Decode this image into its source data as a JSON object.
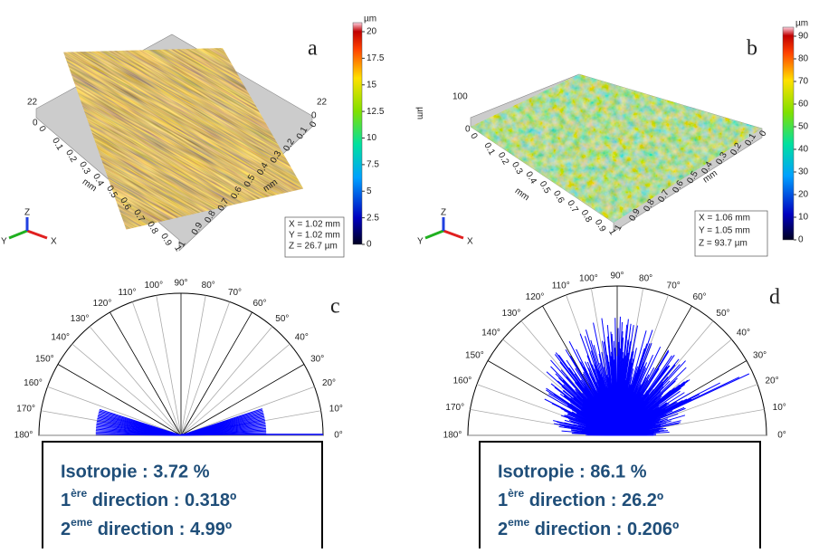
{
  "panels": [
    {
      "label": "a",
      "height_labels": [
        "22",
        "22",
        "0",
        "0"
      ],
      "axis_unit": "mm",
      "edge_ticks": [
        "0",
        "0.1",
        "0.2",
        "0.3",
        "0.4",
        "0.5",
        "0.6",
        "0.7",
        "0.8",
        "0.9",
        "1"
      ],
      "colorbar": {
        "unit": "µm",
        "ticks": [
          "0",
          "2.5",
          "5",
          "7.5",
          "10",
          "12.5",
          "15",
          "17.5",
          "20"
        ]
      },
      "readout": [
        "X = 1.02 mm",
        "Y = 1.02 mm",
        "Z = 26.7 µm"
      ],
      "axes": [
        "X",
        "Y",
        "Z"
      ]
    },
    {
      "label": "b",
      "height_labels": [
        "100",
        "µm",
        "0"
      ],
      "axis_unit": "mm",
      "edge_ticks": [
        "0",
        "0.1",
        "0.2",
        "0.3",
        "0.4",
        "0.5",
        "0.6",
        "0.7",
        "0.8",
        "0.9",
        "1"
      ],
      "colorbar": {
        "unit": "µm",
        "ticks": [
          "0",
          "10",
          "20",
          "30",
          "40",
          "50",
          "60",
          "70",
          "80",
          "90"
        ]
      },
      "readout": [
        "X = 1.06 mm",
        "Y = 1.05 mm",
        "Z = 93.7 µm"
      ],
      "axes": [
        "X",
        "Y",
        "Z"
      ]
    }
  ],
  "polar_angles": [
    "0°",
    "10°",
    "20°",
    "30°",
    "40°",
    "50°",
    "60°",
    "70°",
    "80°",
    "90°",
    "100°",
    "110°",
    "120°",
    "130°",
    "140°",
    "150°",
    "160°",
    "170°",
    "180°"
  ],
  "roses": [
    {
      "label": "c",
      "isotropy": "Isotropie : 3.72 %",
      "dir1": [
        "1",
        "ère",
        " direction : 0.318º"
      ],
      "dir2": [
        "2",
        "eme",
        " direction : 4.99º"
      ]
    },
    {
      "label": "d",
      "isotropy": "Isotropie : 86.1 %",
      "dir1": [
        "1",
        "ère",
        " direction : 26.2º"
      ],
      "dir2": [
        "2",
        "eme",
        " direction : 0.206º"
      ]
    }
  ]
}
